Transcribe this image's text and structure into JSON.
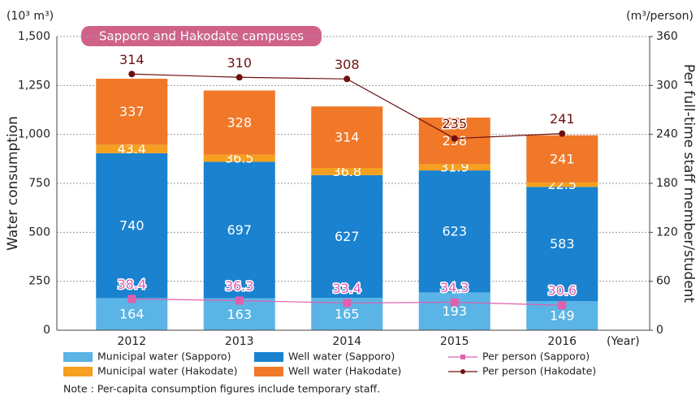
{
  "chart_data": {
    "type": "bar",
    "title": "Sapporo and Hakodate campuses",
    "y_unit": "(10³ m³)",
    "y2_unit": "(m³/person)",
    "y_label": "Water consumption",
    "y2_label": "Per full-time staff member/student",
    "x_unit": "(Year)",
    "note": "Note : Per-capita consumption figures include temporary staff.",
    "categories": [
      "2012",
      "2013",
      "2014",
      "2015",
      "2016"
    ],
    "stacked": true,
    "grid": true,
    "ylim": [
      0,
      1500
    ],
    "yticks": [
      0,
      250,
      500,
      750,
      {
        "value": 1000,
        "label": "1,000"
      },
      {
        "value": 1250,
        "label": "1,250"
      },
      {
        "value": 1500,
        "label": "1,500"
      }
    ],
    "y2lim": [
      0,
      360
    ],
    "y2ticks": [
      0,
      60,
      120,
      180,
      240,
      300,
      360
    ],
    "series": [
      {
        "name": "Municipal water (Sapporo)",
        "type": "bar",
        "color": "#5ab4e5",
        "values": [
          164,
          163,
          165,
          193,
          149
        ]
      },
      {
        "name": "Well water (Sapporo)",
        "type": "bar",
        "color": "#1a82cf",
        "values": [
          740,
          697,
          627,
          623,
          583
        ]
      },
      {
        "name": "Municipal water (Hakodate)",
        "type": "bar",
        "color": "#f5a020",
        "values": [
          43.4,
          36.5,
          36.8,
          31.9,
          22.5
        ]
      },
      {
        "name": "Well water (Hakodate)",
        "type": "bar",
        "color": "#f07828",
        "values": [
          337,
          328,
          314,
          238,
          241
        ]
      },
      {
        "name": "Per person (Sapporo)",
        "type": "line",
        "axis": "y2",
        "marker": "square",
        "color": "#e060b0",
        "values": [
          38.4,
          36.3,
          33.4,
          34.3,
          30.6
        ]
      },
      {
        "name": "Per person (Hakodate)",
        "type": "line",
        "axis": "y2",
        "marker": "circle",
        "color": "#6e1010",
        "values": [
          314,
          310,
          308,
          235,
          241
        ]
      }
    ]
  }
}
